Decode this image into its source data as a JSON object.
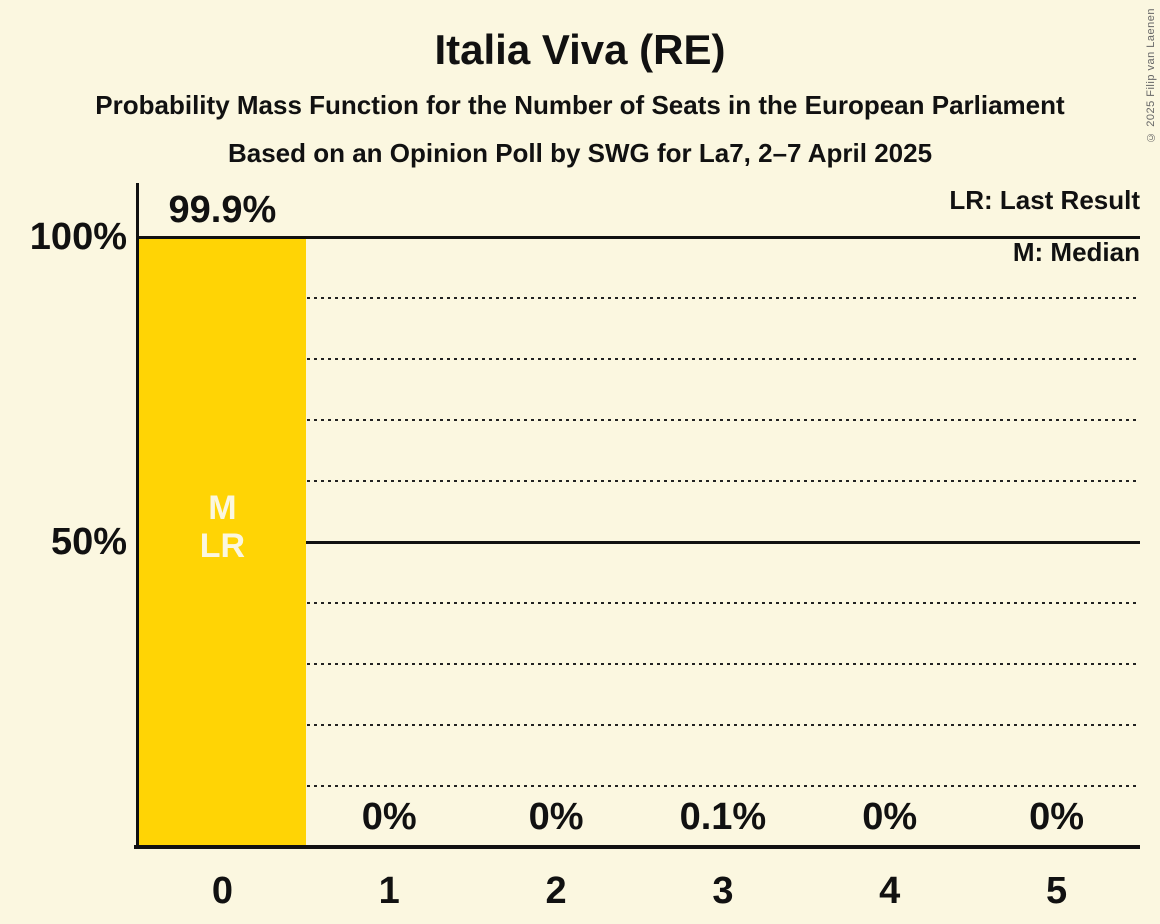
{
  "header": {
    "title": "Italia Viva (RE)",
    "subtitle": "Probability Mass Function for the Number of Seats in the European Parliament",
    "poll_details": "Based on an Opinion Poll by SWG for La7, 2–7 April 2025"
  },
  "legend": {
    "last_result": "LR: Last Result",
    "median": "M: Median"
  },
  "copyright": "© 2025 Filip van Laenen",
  "colors": {
    "background": "#FBF7E0",
    "bar": "#FFD405",
    "text": "#111111",
    "bar_annotation_text": "#FBF7E0",
    "gridline": "#111111"
  },
  "chart_data": {
    "type": "bar",
    "title": "Italia Viva (RE)",
    "xlabel": "",
    "ylabel": "",
    "categories": [
      "0",
      "1",
      "2",
      "3",
      "4",
      "5"
    ],
    "values": [
      99.9,
      0,
      0,
      0.1,
      0,
      0
    ],
    "value_labels": [
      "99.9%",
      "0%",
      "0%",
      "0.1%",
      "0%",
      "0%"
    ],
    "ylim": [
      0,
      100
    ],
    "yticks": [
      100,
      50
    ],
    "ytick_labels": [
      "100%",
      "50%"
    ],
    "dotted_gridlines_pct": [
      10,
      20,
      30,
      40,
      60,
      70,
      80,
      90
    ],
    "solid_gridlines_pct": [
      50,
      100
    ],
    "grid": "horizontal dotted, solid at 50% and 100%",
    "legend_position": "top-right",
    "annotations": [
      {
        "bar_index": 0,
        "lines": [
          "M",
          "LR"
        ]
      }
    ]
  }
}
